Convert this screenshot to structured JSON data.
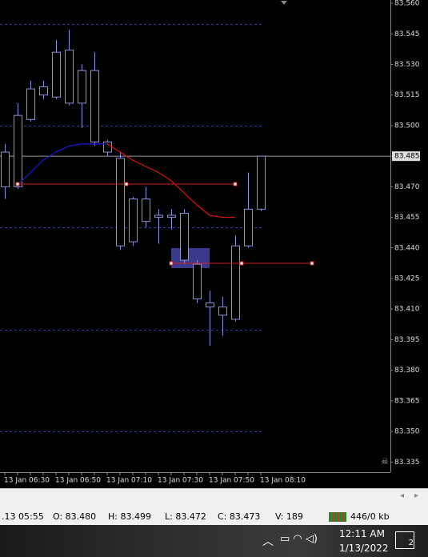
{
  "chart_data": {
    "type": "candlestick",
    "categories": [
      "13 Jan 06:30",
      null,
      null,
      null,
      "13 Jan 06:50",
      null,
      null,
      null,
      "13 Jan 07:10",
      null,
      null,
      null,
      "13 Jan 07:30",
      null,
      null,
      null,
      "13 Jan 07:50",
      null,
      null,
      null,
      "13 Jan 08:10"
    ],
    "open": [
      83.487,
      83.47,
      83.503,
      83.515,
      83.514,
      83.537,
      83.511,
      83.527,
      83.492,
      83.484,
      83.443,
      83.464,
      83.456,
      83.455,
      83.457,
      83.432,
      83.413,
      83.407,
      83.405,
      83.441,
      83.459
    ],
    "high": [
      83.491,
      83.511,
      83.522,
      83.522,
      83.542,
      83.547,
      83.53,
      83.536,
      83.493,
      83.487,
      83.465,
      83.47,
      83.459,
      83.459,
      83.459,
      83.434,
      83.419,
      83.416,
      83.446,
      83.477,
      83.485
    ],
    "low": [
      83.464,
      83.469,
      83.502,
      83.513,
      83.513,
      83.51,
      83.499,
      83.49,
      83.485,
      83.439,
      83.441,
      83.45,
      83.442,
      83.449,
      83.432,
      83.413,
      83.392,
      83.397,
      83.404,
      83.44,
      83.458
    ],
    "close": [
      83.47,
      83.505,
      83.518,
      83.519,
      83.536,
      83.511,
      83.527,
      83.492,
      83.487,
      83.441,
      83.464,
      83.453,
      83.455,
      83.456,
      83.434,
      83.415,
      83.411,
      83.411,
      83.441,
      83.459,
      83.485
    ],
    "candle_color": "#8f8fe0",
    "series": [
      {
        "color": "#1a1ad8",
        "values": [
          null,
          83.471,
          83.477,
          83.483,
          83.487,
          83.49,
          83.491,
          83.491,
          83.491,
          null,
          null,
          null,
          null,
          null,
          null,
          null,
          null,
          null,
          null,
          null,
          null
        ]
      },
      {
        "color": "#e01010",
        "values": [
          null,
          null,
          null,
          null,
          null,
          null,
          null,
          null,
          83.491,
          83.487,
          83.483,
          83.48,
          83.477,
          83.473,
          83.467,
          83.461,
          83.456,
          83.455,
          83.455,
          null,
          null
        ]
      }
    ],
    "ylim": [
      83.33,
      83.5616
    ],
    "yticks": [
      {
        "value": 83.56,
        "label": "83.560"
      },
      83.545,
      {
        "value": 83.53,
        "label": "83.530"
      },
      83.515,
      {
        "value": 83.5,
        "label": "83.500"
      },
      83.485,
      {
        "value": 83.47,
        "label": "83.470"
      },
      83.455,
      {
        "value": 83.44,
        "label": "83.440"
      },
      83.425,
      {
        "value": 83.41,
        "label": "83.410"
      },
      83.395,
      {
        "value": 83.38,
        "label": "83.380"
      },
      83.365,
      {
        "value": 83.35,
        "label": "83.350"
      },
      83.335
    ],
    "grid_levels": [
      83.55,
      83.5,
      83.45,
      83.4,
      83.35
    ],
    "current_price": 83.485
  },
  "status_bar": {
    "time": ".13 05:55",
    "open": "O: 83.480",
    "high": "H: 83.499",
    "low": "L: 83.472",
    "close": "C: 83.473",
    "volume": "V: 189",
    "traffic": "446/0 kb"
  },
  "taskbar": {
    "time": "12:11 AM",
    "date": "1/13/2022",
    "badge": "2"
  }
}
